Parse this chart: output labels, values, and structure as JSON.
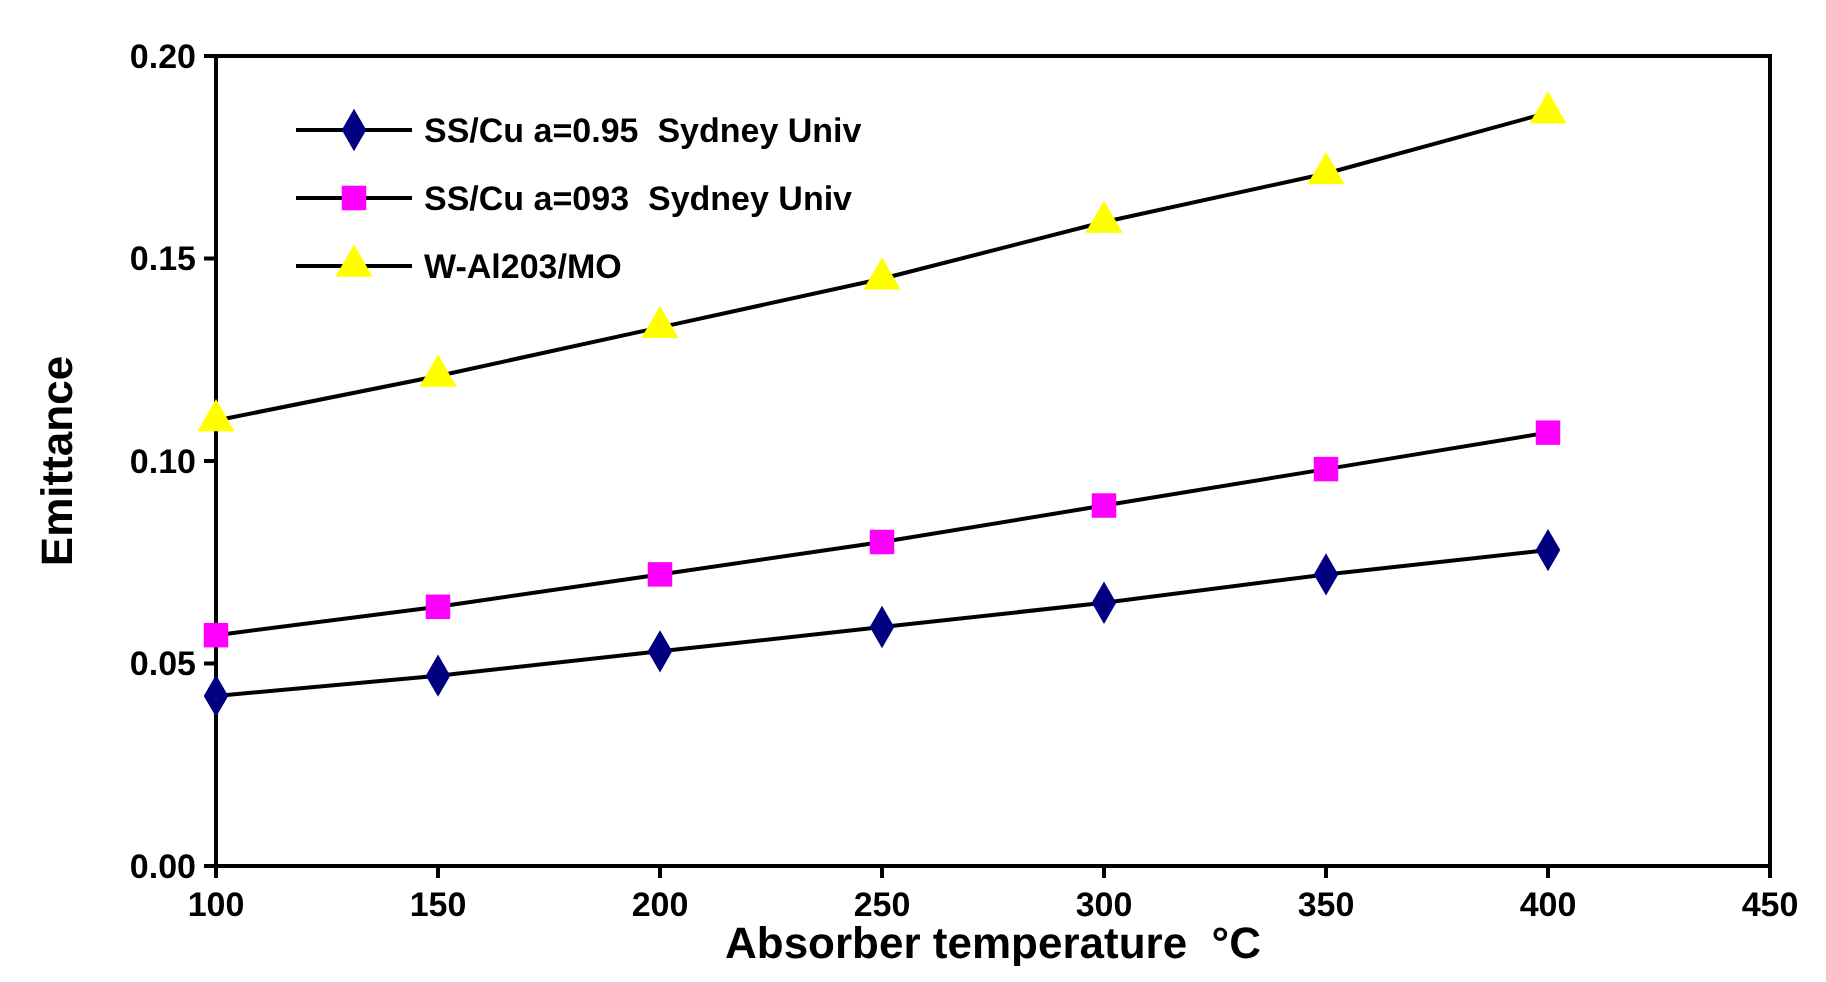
{
  "chart_data": {
    "type": "line",
    "xlabel": "Absorber temperature  °C",
    "ylabel": "Emittance",
    "x": [
      100,
      150,
      200,
      250,
      300,
      350,
      400
    ],
    "xlim": [
      100,
      450
    ],
    "xticks": [
      100,
      150,
      200,
      250,
      300,
      350,
      400,
      450
    ],
    "ylim": [
      0,
      0.2
    ],
    "yticks": [
      {
        "value": 0,
        "label": "0.00"
      },
      {
        "value": 0.05,
        "label": "0.05"
      },
      {
        "value": 0.1,
        "label": "0.10"
      },
      {
        "value": 0.15,
        "label": "0.15"
      },
      {
        "value": 0.2,
        "label": "0.20"
      }
    ],
    "grid": false,
    "legend": "top left",
    "line_style": "solid",
    "series": [
      {
        "name": "SS/Cu a=0.95  Sydney Univ",
        "color": "#000080",
        "marker": "diamond",
        "values": [
          0.042,
          0.047,
          0.053,
          0.059,
          0.065,
          0.072,
          0.078
        ]
      },
      {
        "name": "SS/Cu a=093  Sydney Univ",
        "color": "#ff00ff",
        "marker": "square",
        "values": [
          0.057,
          0.064,
          0.072,
          0.08,
          0.089,
          0.098,
          0.107
        ]
      },
      {
        "name": "W-Al203/MO",
        "color": "#ffff00",
        "marker": "triangle",
        "values": [
          0.11,
          0.121,
          0.133,
          0.145,
          0.159,
          0.171,
          0.186
        ]
      }
    ]
  }
}
